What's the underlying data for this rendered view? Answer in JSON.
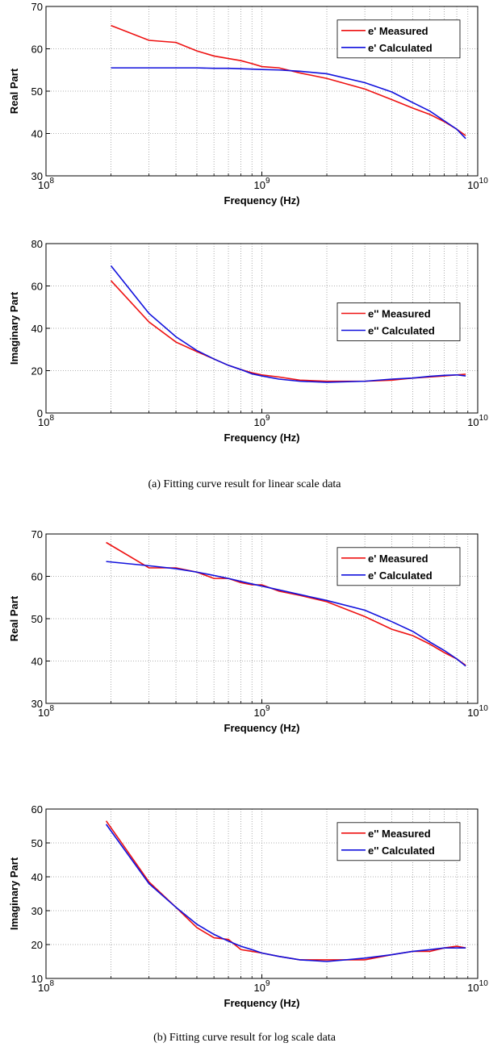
{
  "chart_data": [
    {
      "type": "line",
      "ylabel": "Real Part",
      "xlabel": "Frequency (Hz)",
      "xscale": "log",
      "xlim": [
        100000000,
        10000000000
      ],
      "xticks": [
        {
          "value": 100000000,
          "label": "10^8"
        },
        {
          "value": 1000000000,
          "label": "10^9"
        },
        {
          "value": 10000000000,
          "label": "10^10"
        }
      ],
      "ylim": [
        30,
        70
      ],
      "yticks": [
        30,
        40,
        50,
        60,
        70
      ],
      "grid": true,
      "legend": "upper right",
      "x": [
        200000000,
        300000000,
        400000000,
        500000000,
        600000000,
        700000000,
        800000000,
        900000000,
        1000000000,
        1200000000,
        1500000000,
        2000000000,
        3000000000,
        4000000000,
        5000000000,
        6000000000,
        7000000000,
        8000000000,
        8800000000
      ],
      "series": [
        {
          "name": "e' Measured",
          "color": "#ee1111",
          "values": [
            65.5,
            62,
            61.5,
            59.5,
            58.3,
            57.7,
            57.2,
            56.5,
            55.8,
            55.5,
            54.3,
            53,
            50.5,
            48,
            46,
            44.5,
            42.8,
            41,
            39.5
          ]
        },
        {
          "name": "e' Calculated",
          "color": "#1111dd",
          "values": [
            55.5,
            55.5,
            55.5,
            55.5,
            55.4,
            55.4,
            55.3,
            55.2,
            55.1,
            55,
            54.7,
            54.1,
            52,
            49.8,
            47.3,
            45.3,
            43,
            41,
            38.8
          ]
        }
      ]
    },
    {
      "type": "line",
      "ylabel": "Imaginary Part",
      "xlabel": "Frequency (Hz)",
      "xscale": "log",
      "xlim": [
        100000000,
        10000000000
      ],
      "xticks": [
        {
          "value": 100000000,
          "label": "10^8"
        },
        {
          "value": 1000000000,
          "label": "10^9"
        },
        {
          "value": 10000000000,
          "label": "10^10"
        }
      ],
      "ylim": [
        0,
        80
      ],
      "yticks": [
        0,
        20,
        40,
        60,
        80
      ],
      "grid": true,
      "legend": "right",
      "x": [
        200000000,
        300000000,
        400000000,
        500000000,
        600000000,
        700000000,
        800000000,
        900000000,
        1000000000,
        1200000000,
        1500000000,
        2000000000,
        3000000000,
        4000000000,
        5000000000,
        6000000000,
        7000000000,
        8000000000,
        8800000000
      ],
      "series": [
        {
          "name": "e'' Measured",
          "color": "#ee1111",
          "values": [
            62.5,
            43,
            33.5,
            29,
            25.5,
            22.5,
            20.5,
            19,
            18,
            17,
            15.5,
            15,
            15,
            15.5,
            16.5,
            17,
            17.5,
            18,
            18.3
          ]
        },
        {
          "name": "e'' Calculated",
          "color": "#1111dd",
          "values": [
            69.5,
            47,
            36,
            29.5,
            25.5,
            22.5,
            20.5,
            18.5,
            17.5,
            16,
            15,
            14.5,
            15,
            16,
            16.5,
            17.3,
            17.8,
            18,
            17.5
          ]
        }
      ]
    },
    {
      "type": "line",
      "ylabel": "Real Part",
      "xlabel": "Frequency (Hz)",
      "xscale": "log",
      "xlim": [
        100000000,
        10000000000
      ],
      "xticks": [
        {
          "value": 100000000,
          "label": "10^8"
        },
        {
          "value": 1000000000,
          "label": "10^9"
        },
        {
          "value": 10000000000,
          "label": "10^10"
        }
      ],
      "ylim": [
        30,
        70
      ],
      "yticks": [
        30,
        40,
        50,
        60,
        70
      ],
      "grid": true,
      "legend": "upper right",
      "x": [
        190000000,
        300000000,
        400000000,
        500000000,
        600000000,
        700000000,
        800000000,
        900000000,
        1000000000,
        1200000000,
        1500000000,
        2000000000,
        3000000000,
        4000000000,
        5000000000,
        6000000000,
        7000000000,
        8000000000,
        8800000000
      ],
      "series": [
        {
          "name": "e' Measured",
          "color": "#ee1111",
          "values": [
            68,
            62,
            62,
            61,
            59.5,
            59.5,
            58.5,
            58,
            58,
            56.5,
            55.5,
            54,
            50.5,
            47.5,
            46,
            44,
            42,
            40.5,
            39
          ]
        },
        {
          "name": "e' Calculated",
          "color": "#1111dd",
          "values": [
            63.5,
            62.5,
            61.8,
            61,
            60.2,
            59.5,
            58.8,
            58.2,
            57.7,
            56.8,
            55.7,
            54.3,
            52,
            49.3,
            47,
            44.5,
            42.5,
            40.5,
            38.8
          ]
        }
      ]
    },
    {
      "type": "line",
      "ylabel": "Imaginary Part",
      "xlabel": "Frequency (Hz)",
      "xscale": "log",
      "xlim": [
        100000000,
        10000000000
      ],
      "xticks": [
        {
          "value": 100000000,
          "label": "10^8"
        },
        {
          "value": 1000000000,
          "label": "10^9"
        },
        {
          "value": 10000000000,
          "label": "10^10"
        }
      ],
      "ylim": [
        10,
        60
      ],
      "yticks": [
        10,
        20,
        30,
        40,
        50,
        60
      ],
      "grid": true,
      "legend": "upper right",
      "x": [
        190000000,
        300000000,
        400000000,
        500000000,
        600000000,
        700000000,
        800000000,
        900000000,
        1000000000,
        1200000000,
        1500000000,
        2000000000,
        3000000000,
        4000000000,
        5000000000,
        6000000000,
        7000000000,
        8000000000,
        8800000000
      ],
      "series": [
        {
          "name": "e'' Measured",
          "color": "#ee1111",
          "values": [
            56.5,
            38.5,
            31,
            25,
            22,
            21.5,
            18.5,
            18,
            17.5,
            16.5,
            15.5,
            15.5,
            15.5,
            17,
            18,
            18,
            19,
            19.5,
            19
          ]
        },
        {
          "name": "e'' Calculated",
          "color": "#1111dd",
          "values": [
            55.5,
            38,
            31,
            26,
            23,
            21,
            19.5,
            18.5,
            17.5,
            16.5,
            15.5,
            15,
            16,
            17,
            18,
            18.5,
            19,
            19,
            19
          ]
        }
      ]
    }
  ],
  "captions": [
    "(a) Fitting curve result for linear scale data",
    "(b) Fitting curve result for log scale data"
  ]
}
